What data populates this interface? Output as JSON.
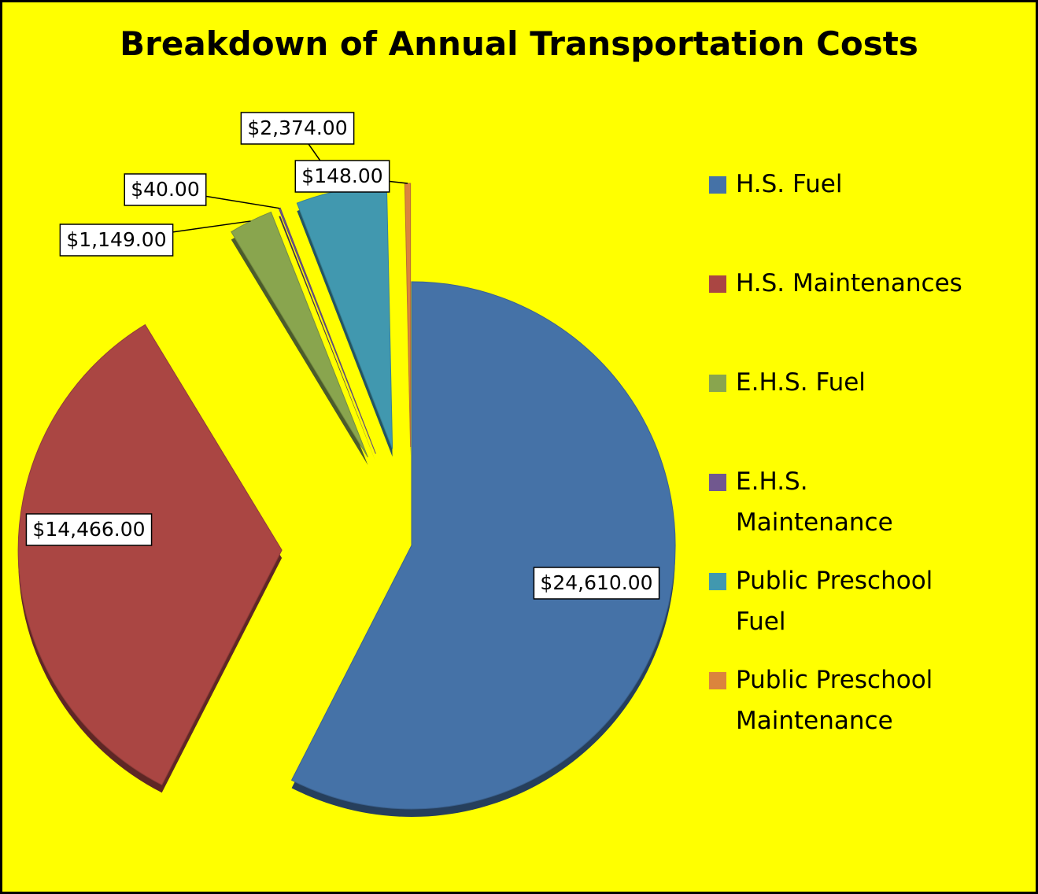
{
  "chart_data": {
    "type": "pie",
    "title": "Breakdown of Annual Transportation Costs",
    "categories": [
      "H.S. Fuel",
      "H.S. Maintenances",
      "E.H.S. Fuel",
      "E.H.S. Maintenance",
      "Public Preschool Fuel",
      "Public Preschool Maintenance"
    ],
    "values": [
      24610,
      14466,
      1149,
      40,
      2374,
      148
    ],
    "value_labels": [
      "$24,610.00",
      "$14,466.00",
      "$1,149.00",
      "$40.00",
      "$2,374.00",
      "$148.00"
    ],
    "colors": [
      "#4572a7",
      "#aa4643",
      "#89a54e",
      "#71588f",
      "#4198af",
      "#db843d"
    ],
    "legend": "right"
  }
}
